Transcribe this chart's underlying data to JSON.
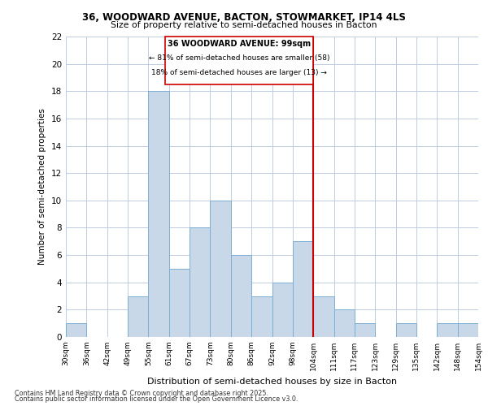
{
  "title1": "36, WOODWARD AVENUE, BACTON, STOWMARKET, IP14 4LS",
  "title2": "Size of property relative to semi-detached houses in Bacton",
  "xlabel": "Distribution of semi-detached houses by size in Bacton",
  "ylabel": "Number of semi-detached properties",
  "footnote1": "Contains HM Land Registry data © Crown copyright and database right 2025.",
  "footnote2": "Contains public sector information licensed under the Open Government Licence v3.0.",
  "bin_labels": [
    "30sqm",
    "36sqm",
    "42sqm",
    "49sqm",
    "55sqm",
    "61sqm",
    "67sqm",
    "73sqm",
    "80sqm",
    "86sqm",
    "92sqm",
    "98sqm",
    "104sqm",
    "111sqm",
    "117sqm",
    "123sqm",
    "129sqm",
    "135sqm",
    "142sqm",
    "148sqm",
    "154sqm"
  ],
  "counts": [
    1,
    0,
    0,
    3,
    18,
    5,
    8,
    10,
    6,
    3,
    4,
    7,
    3,
    2,
    1,
    0,
    1,
    0,
    1,
    1
  ],
  "bar_color": "#c8d8e8",
  "bar_edgecolor": "#7bafd4",
  "property_label": "36 WOODWARD AVENUE: 99sqm",
  "pct_smaller": 81,
  "n_smaller": 58,
  "pct_larger": 18,
  "n_larger": 13,
  "annotation_box_color": "#cc0000",
  "vline_color": "#cc0000",
  "vline_bar_index": 11,
  "ylim": [
    0,
    22
  ],
  "yticks": [
    0,
    2,
    4,
    6,
    8,
    10,
    12,
    14,
    16,
    18,
    20,
    22
  ],
  "background_color": "#ffffff",
  "grid_color": "#c0cce0"
}
